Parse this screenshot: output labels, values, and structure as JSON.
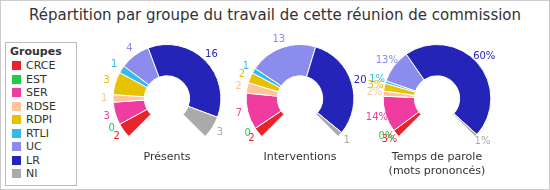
{
  "title": "Répartition par groupe du travail de cette réunion de commission",
  "legend_title": "Groupes",
  "legend": "left",
  "chart_data": [
    {
      "type": "doughnut",
      "title": "Présents",
      "categories": [
        "CRCE",
        "EST",
        "SER",
        "RDSE",
        "RDPI",
        "RTLI",
        "UC",
        "LR",
        "NI"
      ],
      "colors": [
        "#e8232a",
        "#22cc44",
        "#f03ca0",
        "#ffc49a",
        "#e6c200",
        "#33bbee",
        "#8c8cee",
        "#2424b8",
        "#aaaaaa"
      ],
      "values": [
        2,
        0,
        3,
        1,
        3,
        1,
        4,
        16,
        3
      ],
      "data_labels": true
    },
    {
      "type": "doughnut",
      "title": "Interventions",
      "categories": [
        "CRCE",
        "EST",
        "SER",
        "RDSE",
        "RDPI",
        "RTLI",
        "UC",
        "LR",
        "NI"
      ],
      "colors": [
        "#e8232a",
        "#22cc44",
        "#f03ca0",
        "#ffc49a",
        "#e6c200",
        "#33bbee",
        "#8c8cee",
        "#2424b8",
        "#aaaaaa"
      ],
      "values": [
        2,
        0,
        7,
        2,
        2,
        1,
        13,
        20,
        1
      ],
      "data_labels": true
    },
    {
      "type": "doughnut",
      "title": "Temps de parole (mots prononcés)",
      "categories": [
        "CRCE",
        "EST",
        "SER",
        "RDSE",
        "RDPI",
        "RTLI",
        "UC",
        "LR",
        "NI"
      ],
      "colors": [
        "#e8232a",
        "#22cc44",
        "#f03ca0",
        "#ffc49a",
        "#e6c200",
        "#33bbee",
        "#8c8cee",
        "#2424b8",
        "#aaaaaa"
      ],
      "values": [
        3,
        0,
        14,
        2,
        3,
        1,
        13,
        60,
        1
      ],
      "value_labels": [
        "3%",
        "0%",
        "14%",
        "2%",
        "3%",
        "1%",
        "13%",
        "60%",
        "1%"
      ],
      "data_labels": true
    }
  ]
}
